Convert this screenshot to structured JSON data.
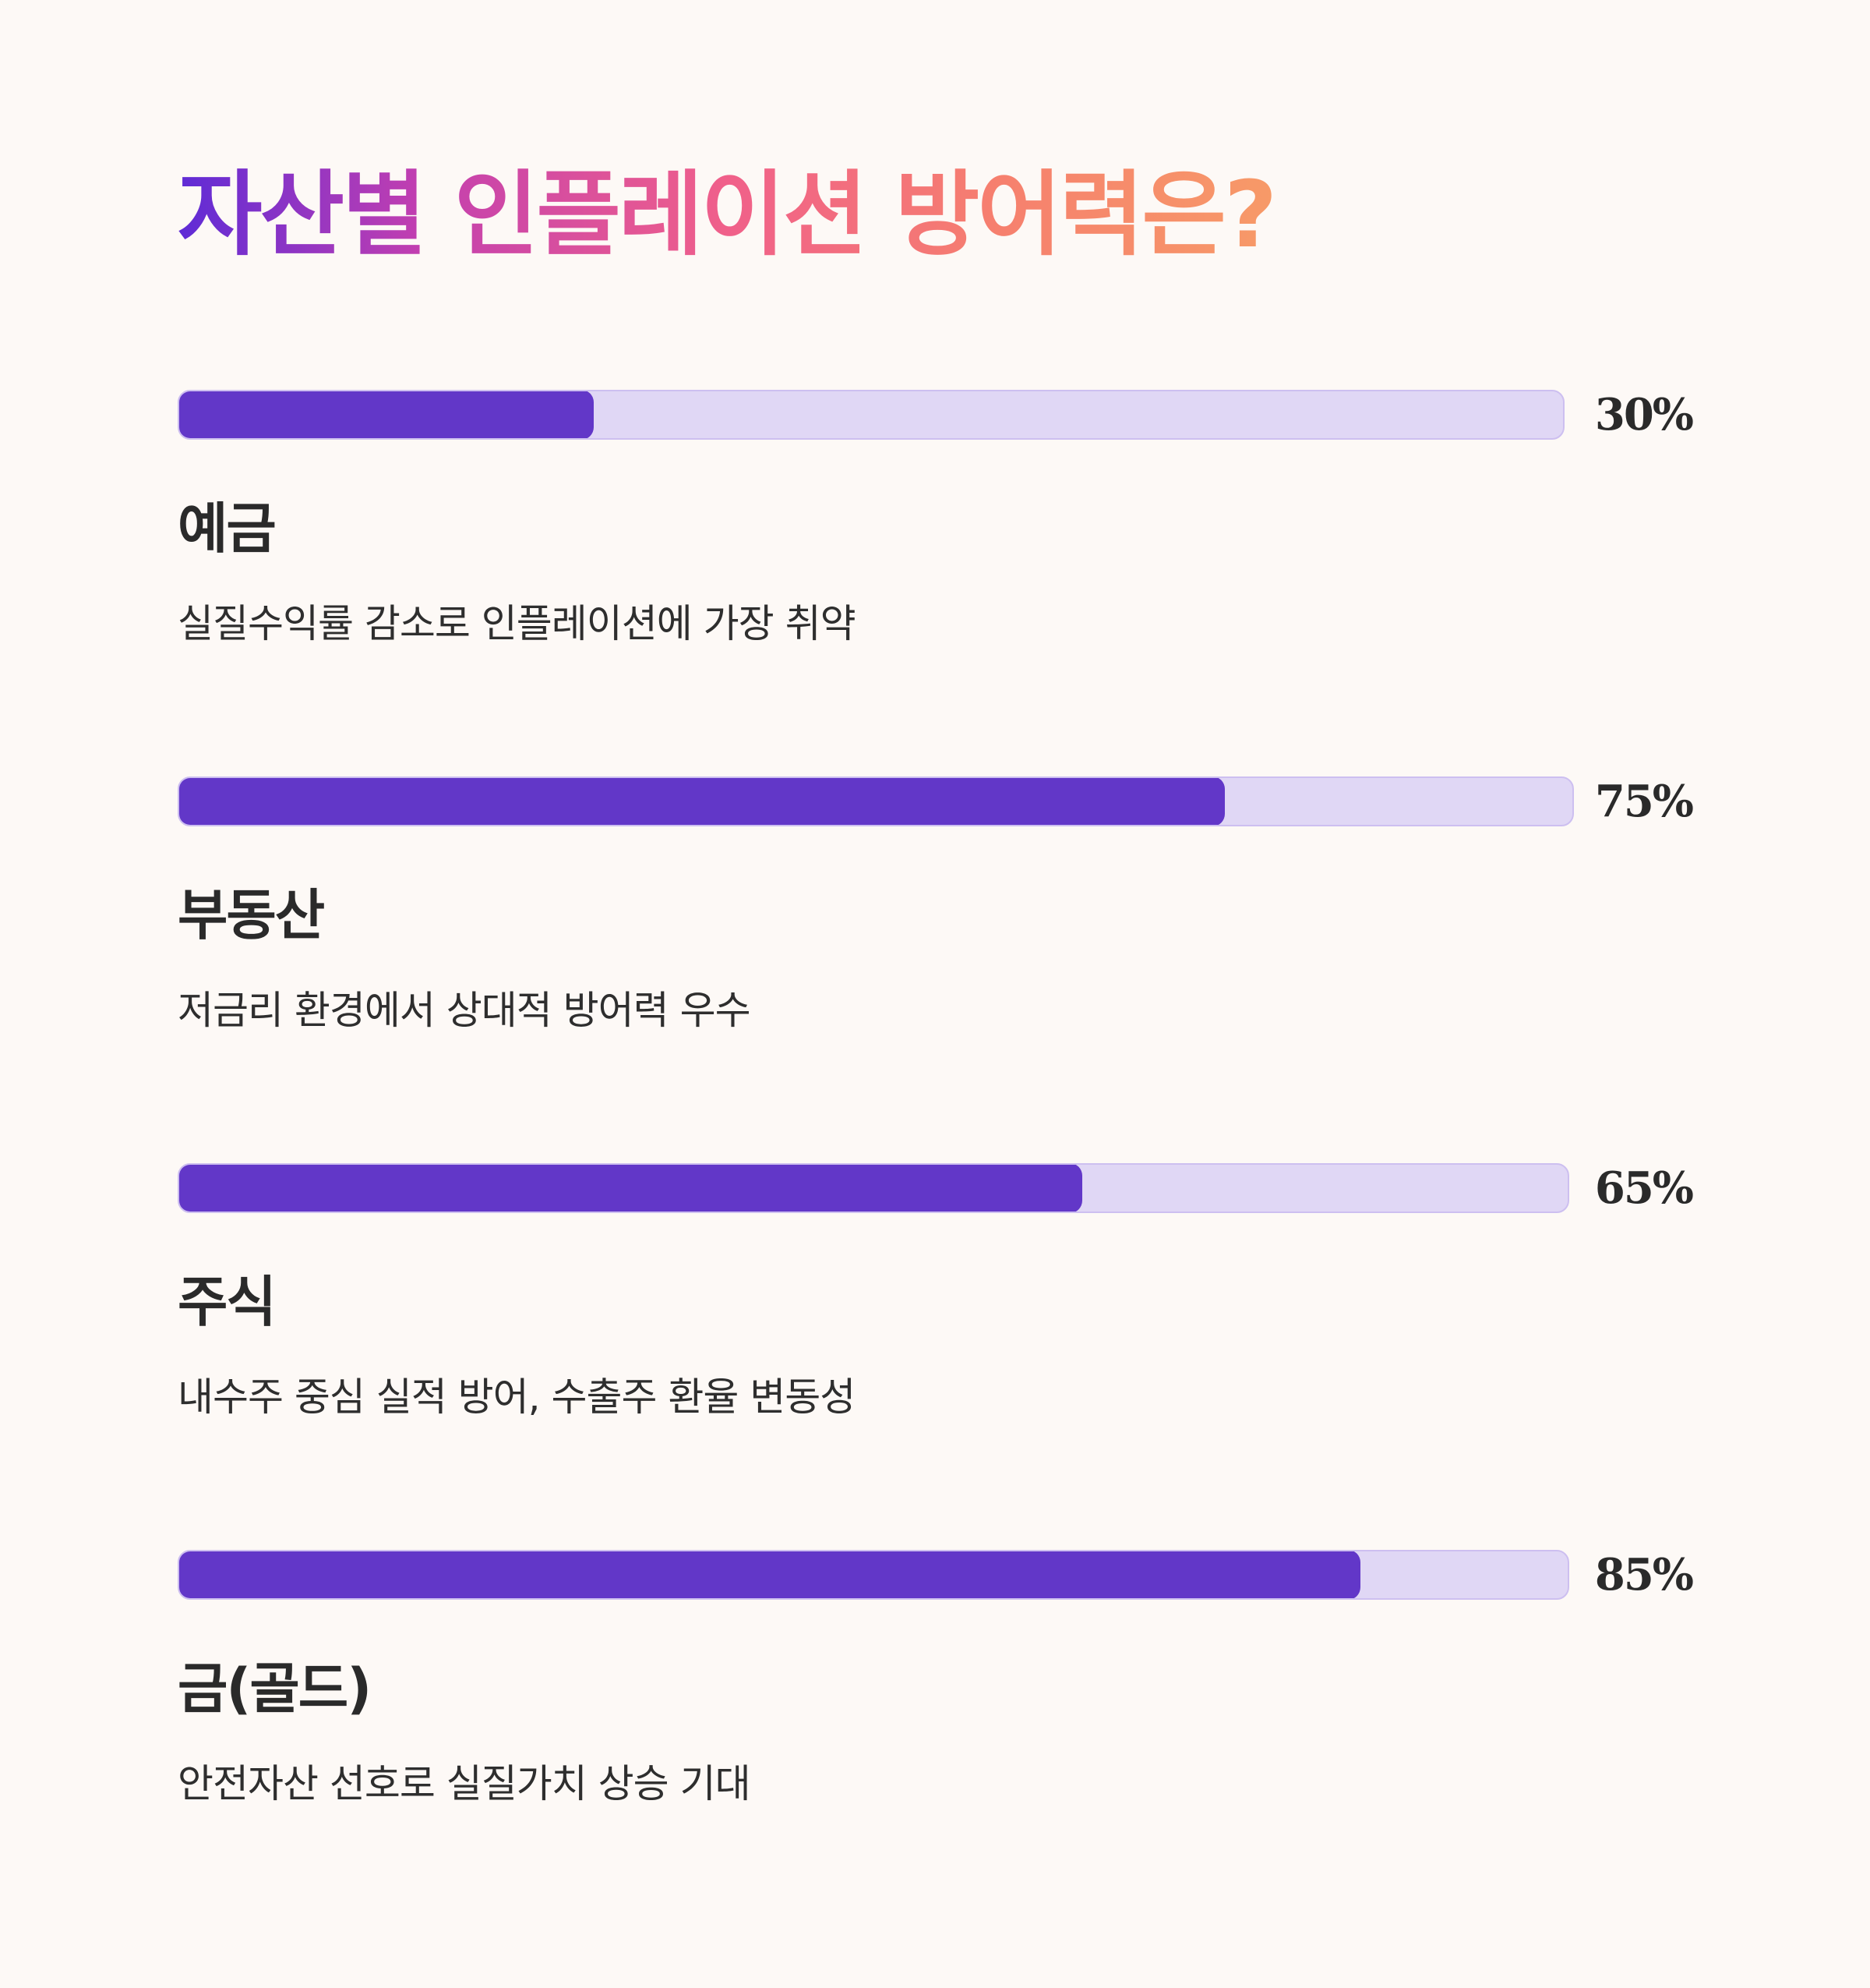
{
  "title": "자산별 인플레이션 방어력은?",
  "colors": {
    "fill": "#6237c8",
    "track": "#e0d7f5",
    "background": "#fdf9f6",
    "title_gradient": [
      "#5e2bd6",
      "#f0608a",
      "#f79a68"
    ]
  },
  "chart_data": {
    "type": "bar",
    "title": "자산별 인플레이션 방어력은?",
    "categories": [
      "예금",
      "부동산",
      "주식",
      "금(골드)"
    ],
    "values": [
      30,
      75,
      65,
      85
    ],
    "ylim": [
      0,
      100
    ],
    "value_labels": [
      "30%",
      "75%",
      "65%",
      "85%"
    ],
    "descriptions": [
      "실질수익률 감소로 인플레이션에 가장 취약",
      "저금리 환경에서 상대적 방어력 우수",
      "내수주 중심 실적 방어, 수출주 환율 변동성",
      "안전자산 선호로 실질가치 상승 기대"
    ]
  }
}
